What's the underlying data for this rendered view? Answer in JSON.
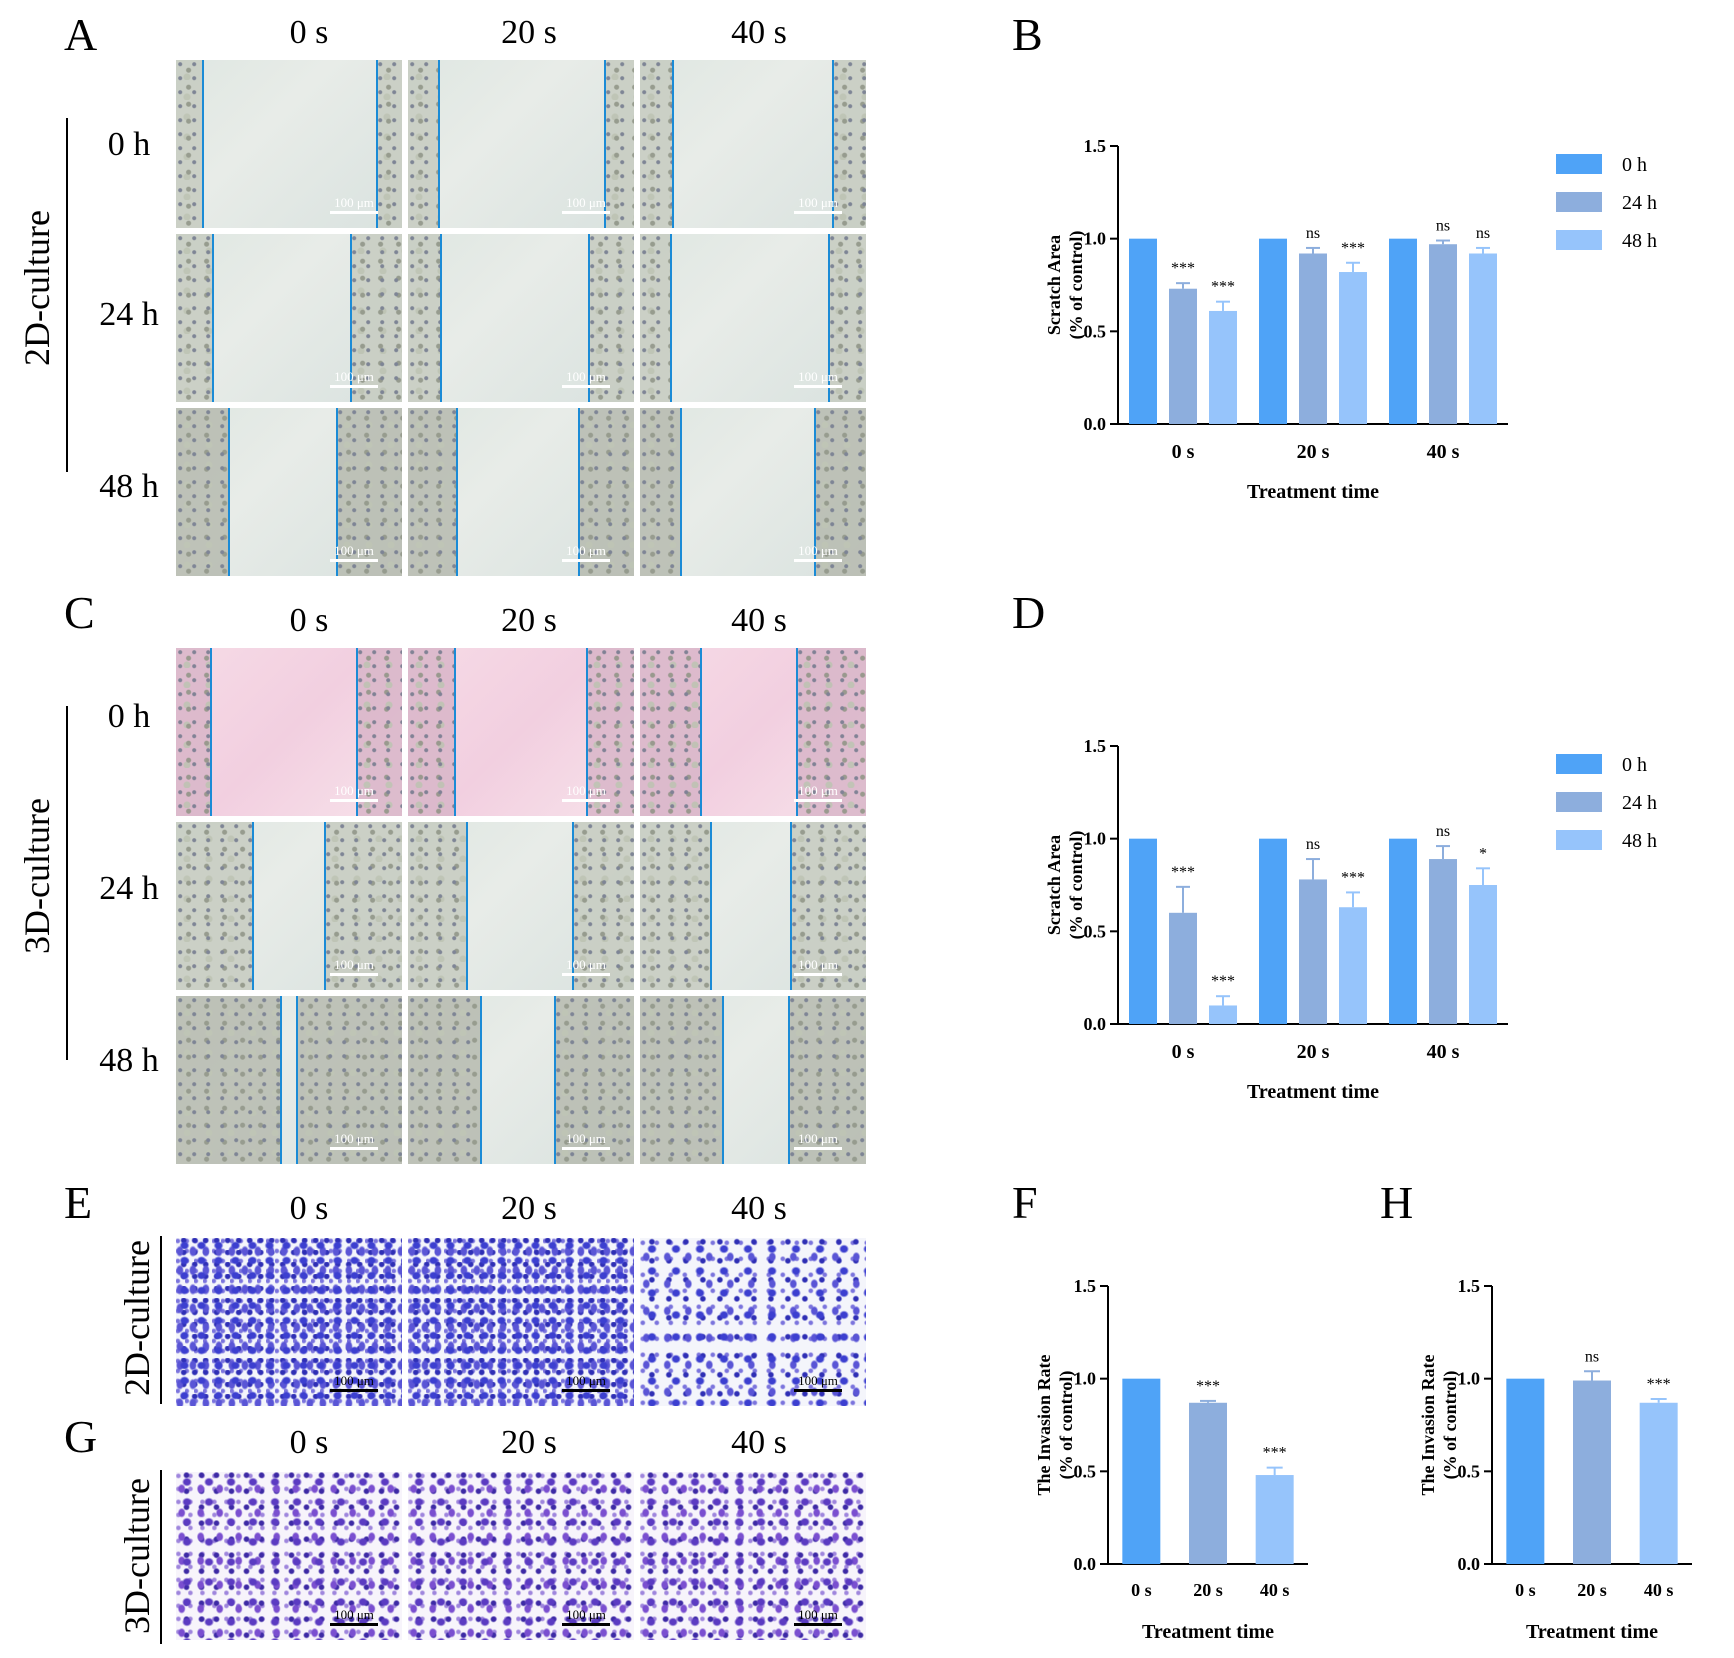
{
  "panels": {
    "A": "A",
    "B": "B",
    "C": "C",
    "D": "D",
    "E": "E",
    "F": "F",
    "G": "G",
    "H": "H"
  },
  "micrographs": {
    "columns": [
      "0 s",
      "20 s",
      "40 s"
    ],
    "rows_scratch": [
      "0 h",
      "24 h",
      "48 h"
    ],
    "group_2d": "2D-culture",
    "group_3d": "3D-culture",
    "scale_bar": "100 μm"
  },
  "colors": {
    "h0": "#4fa3f7",
    "h24": "#8daedd",
    "h48": "#96c4fb",
    "scratch_edge": "#1b8bd6"
  },
  "chart_data": [
    {
      "id": "B",
      "type": "bar",
      "title": "",
      "xlabel": "Treatment time",
      "ylabel_line1": "Scratch Area",
      "ylabel_line2": "(% of control)",
      "ylim": [
        0,
        1.5
      ],
      "yticks": [
        "0.0",
        "0.5",
        "1.0",
        "1.5"
      ],
      "categories": [
        "0 s",
        "20 s",
        "40 s"
      ],
      "legend_position": "right",
      "series": [
        {
          "name": "0 h",
          "color": "#4fa3f7",
          "values": [
            1.0,
            1.0,
            1.0
          ],
          "errors": [
            0,
            0,
            0
          ],
          "sig": [
            "",
            "",
            ""
          ]
        },
        {
          "name": "24 h",
          "color": "#8daedd",
          "values": [
            0.73,
            0.92,
            0.97
          ],
          "errors": [
            0.03,
            0.03,
            0.02
          ],
          "sig": [
            "***",
            "ns",
            "ns"
          ]
        },
        {
          "name": "48 h",
          "color": "#96c4fb",
          "values": [
            0.61,
            0.82,
            0.92
          ],
          "errors": [
            0.05,
            0.05,
            0.03
          ],
          "sig": [
            "***",
            "***",
            "ns"
          ]
        }
      ]
    },
    {
      "id": "D",
      "type": "bar",
      "title": "",
      "xlabel": "Treatment time",
      "ylabel_line1": "Scratch Area",
      "ylabel_line2": "(% of control)",
      "ylim": [
        0,
        1.5
      ],
      "yticks": [
        "0.0",
        "0.5",
        "1.0",
        "1.5"
      ],
      "categories": [
        "0 s",
        "20 s",
        "40 s"
      ],
      "legend_position": "right",
      "series": [
        {
          "name": "0 h",
          "color": "#4fa3f7",
          "values": [
            1.0,
            1.0,
            1.0
          ],
          "errors": [
            0,
            0,
            0
          ],
          "sig": [
            "",
            "",
            ""
          ]
        },
        {
          "name": "24 h",
          "color": "#8daedd",
          "values": [
            0.6,
            0.78,
            0.89
          ],
          "errors": [
            0.14,
            0.11,
            0.07
          ],
          "sig": [
            "***",
            "ns",
            "ns"
          ]
        },
        {
          "name": "48 h",
          "color": "#96c4fb",
          "values": [
            0.1,
            0.63,
            0.75
          ],
          "errors": [
            0.05,
            0.08,
            0.09
          ],
          "sig": [
            "***",
            "***",
            "*"
          ]
        }
      ]
    },
    {
      "id": "F",
      "type": "bar",
      "title": "",
      "xlabel": "Treatment time",
      "ylabel_line1": "The Invasion Rate",
      "ylabel_line2": "(% of control)",
      "ylim": [
        0,
        1.5
      ],
      "yticks": [
        "0.0",
        "0.5",
        "1.0",
        "1.5"
      ],
      "categories": [
        "0 s",
        "20 s",
        "40 s"
      ],
      "colors": [
        "#4fa3f7",
        "#8daedd",
        "#96c4fb"
      ],
      "values": [
        1.0,
        0.87,
        0.48
      ],
      "errors": [
        0,
        0.01,
        0.04
      ],
      "sig": [
        "",
        "***",
        "***"
      ]
    },
    {
      "id": "H",
      "type": "bar",
      "title": "",
      "xlabel": "Treatment time",
      "ylabel_line1": "The Invasion Rate",
      "ylabel_line2": "(% of control)",
      "ylim": [
        0,
        1.5
      ],
      "yticks": [
        "0.0",
        "0.5",
        "1.0",
        "1.5"
      ],
      "categories": [
        "0 s",
        "20 s",
        "40 s"
      ],
      "colors": [
        "#4fa3f7",
        "#8daedd",
        "#96c4fb"
      ],
      "values": [
        1.0,
        0.99,
        0.87
      ],
      "errors": [
        0,
        0.05,
        0.02
      ],
      "sig": [
        "",
        "ns",
        "***"
      ]
    }
  ]
}
